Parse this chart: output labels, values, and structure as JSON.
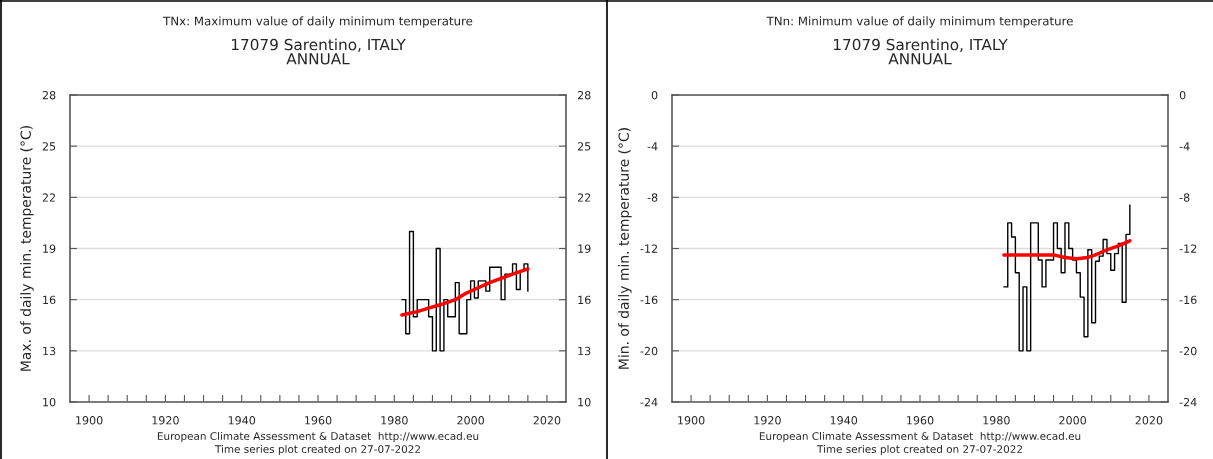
{
  "chart_data": [
    {
      "type": "step",
      "title": "TNx: Maximum value of daily minimum temperature",
      "subtitle": "17079 Sarentino, ITALY\nANNUAL",
      "ylabel": "Max. of daily min. temperature (°C)",
      "annotations": [
        "European Climate Assessment & Dataset  http://www.ecad.eu",
        "Time series plot created on 27-07-2022"
      ],
      "xlim": [
        1895,
        2025
      ],
      "xticks": [
        1900,
        {
          "value": 1905,
          "label": null
        },
        {
          "value": 1910,
          "label": null
        },
        {
          "value": 1915,
          "label": null
        },
        1920,
        {
          "value": 1925,
          "label": null
        },
        {
          "value": 1930,
          "label": null
        },
        {
          "value": 1935,
          "label": null
        },
        1940,
        {
          "value": 1945,
          "label": null
        },
        {
          "value": 1950,
          "label": null
        },
        {
          "value": 1955,
          "label": null
        },
        1960,
        {
          "value": 1965,
          "label": null
        },
        {
          "value": 1970,
          "label": null
        },
        {
          "value": 1975,
          "label": null
        },
        1980,
        {
          "value": 1985,
          "label": null
        },
        {
          "value": 1990,
          "label": null
        },
        {
          "value": 1995,
          "label": null
        },
        2000,
        {
          "value": 2005,
          "label": null
        },
        {
          "value": 2010,
          "label": null
        },
        {
          "value": 2015,
          "label": null
        },
        2020
      ],
      "ylim": [
        10,
        28
      ],
      "yticks": [
        10,
        13,
        16,
        19,
        22,
        25,
        28
      ],
      "y2lim": [
        10,
        28
      ],
      "y2ticks": [
        10,
        13,
        16,
        19,
        22,
        25,
        28
      ],
      "grid": "y",
      "series": [
        {
          "color": "#000000",
          "x": [
            1982,
            1983,
            1984,
            1985,
            1986,
            1987,
            1988,
            1989,
            1990,
            1991,
            1992,
            1993,
            1994,
            1995,
            1996,
            1997,
            1998,
            1999,
            2000,
            2001,
            2002,
            2003,
            2004,
            2005,
            2006,
            2007,
            2008,
            2009,
            2010,
            2011,
            2012,
            2013,
            2014,
            2015
          ],
          "values": [
            16,
            14,
            20,
            15,
            16,
            16,
            16,
            15,
            13,
            19,
            13,
            16,
            15,
            15,
            17,
            14,
            14,
            16,
            17.1,
            16.1,
            17.1,
            17.1,
            16.5,
            17.9,
            17.9,
            17.9,
            16,
            17.5,
            17.5,
            18.1,
            16.6,
            17.7,
            18.1,
            16.5
          ]
        },
        {
          "type": "line",
          "color": "#ff0000",
          "x": [
            1982,
            1986,
            1989,
            1992,
            1996,
            1999,
            2002,
            2005,
            2008,
            2011,
            2015
          ],
          "values": [
            15.1,
            15.3,
            15.5,
            15.7,
            16.0,
            16.4,
            16.7,
            17.0,
            17.25,
            17.5,
            17.8
          ]
        }
      ]
    },
    {
      "type": "step",
      "title": "TNn: Minimum value of daily minimum temperature",
      "subtitle": "17079 Sarentino, ITALY\nANNUAL",
      "ylabel": "Min. of daily min. temperature (°C)",
      "annotations": [
        "European Climate Assessment & Dataset  http://www.ecad.eu",
        "Time series plot created on 27-07-2022"
      ],
      "xlim": [
        1895,
        2025
      ],
      "xticks": [
        1900,
        {
          "value": 1905,
          "label": null
        },
        {
          "value": 1910,
          "label": null
        },
        {
          "value": 1915,
          "label": null
        },
        1920,
        {
          "value": 1925,
          "label": null
        },
        {
          "value": 1930,
          "label": null
        },
        {
          "value": 1935,
          "label": null
        },
        1940,
        {
          "value": 1945,
          "label": null
        },
        {
          "value": 1950,
          "label": null
        },
        {
          "value": 1955,
          "label": null
        },
        1960,
        {
          "value": 1965,
          "label": null
        },
        {
          "value": 1970,
          "label": null
        },
        {
          "value": 1975,
          "label": null
        },
        1980,
        {
          "value": 1985,
          "label": null
        },
        {
          "value": 1990,
          "label": null
        },
        {
          "value": 1995,
          "label": null
        },
        2000,
        {
          "value": 2005,
          "label": null
        },
        {
          "value": 2010,
          "label": null
        },
        {
          "value": 2015,
          "label": null
        },
        2020
      ],
      "ylim": [
        -24,
        0
      ],
      "yticks": [
        -24,
        -20,
        -16,
        -12,
        -8,
        -4,
        0
      ],
      "y2lim": [
        -24,
        0
      ],
      "y2ticks": [
        -24,
        -20,
        -16,
        -12,
        -8,
        -4,
        0
      ],
      "grid": "y",
      "series": [
        {
          "color": "#000000",
          "x": [
            1982,
            1983,
            1984,
            1985,
            1986,
            1987,
            1988,
            1989,
            1990,
            1991,
            1992,
            1993,
            1994,
            1995,
            1996,
            1997,
            1998,
            1999,
            2000,
            2001,
            2002,
            2003,
            2004,
            2005,
            2006,
            2007,
            2008,
            2009,
            2010,
            2011,
            2012,
            2013,
            2014,
            2015
          ],
          "values": [
            -15,
            -10,
            -11.1,
            -13.9,
            -20,
            -15,
            -20,
            -10,
            -10,
            -12.9,
            -15,
            -12.9,
            -12.9,
            -10,
            -12,
            -13.9,
            -10,
            -12,
            -12.9,
            -13.9,
            -15.8,
            -18.9,
            -12.1,
            -17.8,
            -13,
            -12.6,
            -11.3,
            -12.4,
            -13.7,
            -12.4,
            -11.6,
            -16.2,
            -10.9,
            -8.6
          ]
        },
        {
          "type": "line",
          "color": "#ff0000",
          "x": [
            1982,
            1986,
            1990,
            1995,
            1998,
            2001,
            2004,
            2006,
            2009,
            2012,
            2015
          ],
          "values": [
            -12.5,
            -12.5,
            -12.5,
            -12.5,
            -12.7,
            -12.8,
            -12.7,
            -12.5,
            -12.1,
            -11.8,
            -11.4
          ]
        }
      ]
    }
  ]
}
